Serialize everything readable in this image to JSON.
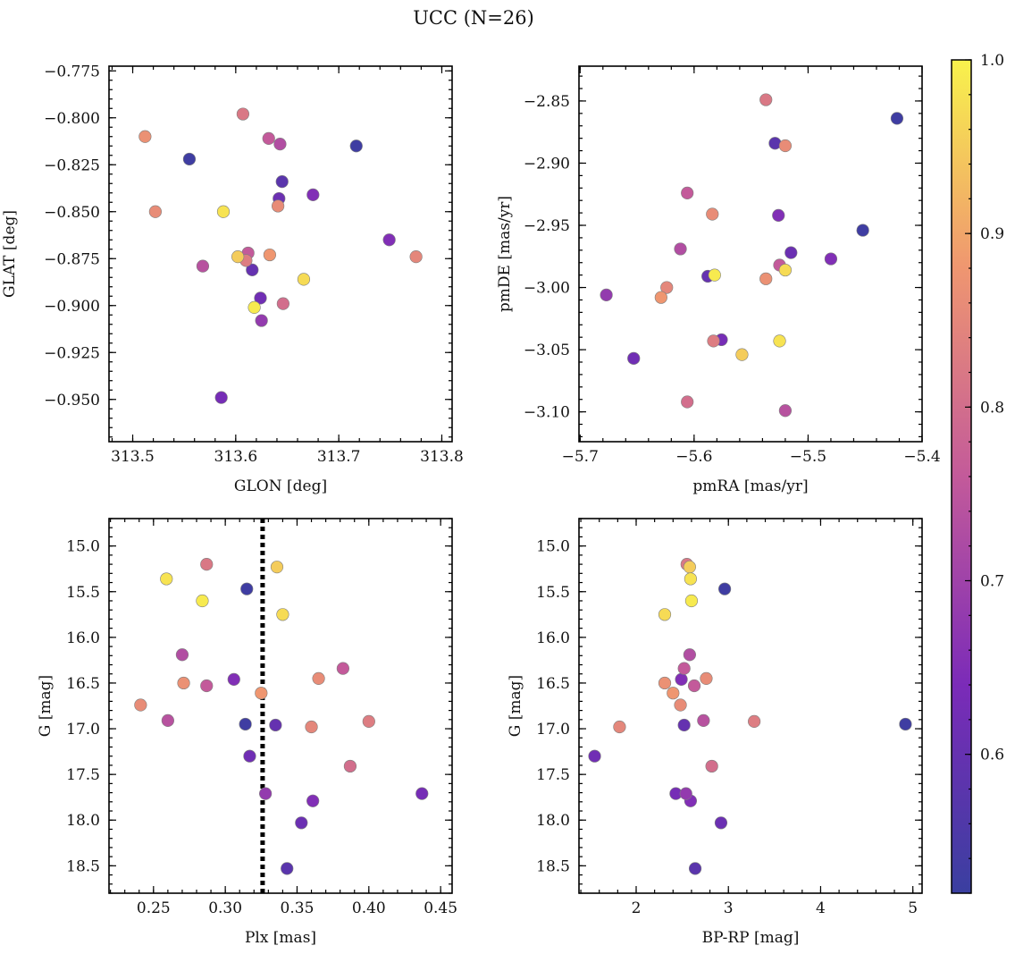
{
  "chart_data": {
    "title": "UCC (N=26)",
    "colormap": "plasma",
    "colorbar": {
      "range": [
        0.52,
        1.0
      ],
      "ticks": [
        0.6,
        0.7,
        0.8,
        0.9,
        1.0
      ],
      "tick_labels": [
        "0.6",
        "0.7",
        "0.8",
        "0.9",
        "1.0"
      ],
      "placement": "right"
    },
    "members": [
      {
        "glon": 313.555,
        "glat": -0.822,
        "pmra": -5.422,
        "pmde": -2.864,
        "plx": 0.315,
        "g": 15.47,
        "bprp": 2.96,
        "p": 0.53
      },
      {
        "glon": 313.717,
        "glat": -0.815,
        "pmra": -5.452,
        "pmde": -2.954,
        "plx": 0.314,
        "g": 16.95,
        "bprp": 4.92,
        "p": 0.53
      },
      {
        "glon": 313.607,
        "glat": -0.798,
        "pmra": -5.537,
        "pmde": -2.849,
        "plx": 0.287,
        "g": 15.2,
        "bprp": 2.55,
        "p": 0.82
      },
      {
        "glon": 313.632,
        "glat": -0.811,
        "pmra": -5.606,
        "pmde": -2.924,
        "plx": 0.382,
        "g": 16.34,
        "bprp": 2.52,
        "p": 0.76
      },
      {
        "glon": 313.643,
        "glat": -0.814,
        "pmra": -5.612,
        "pmde": -2.969,
        "plx": 0.27,
        "g": 16.19,
        "bprp": 2.58,
        "p": 0.73
      },
      {
        "glon": 313.645,
        "glat": -0.834,
        "pmra": -5.529,
        "pmde": -2.884,
        "plx": 0.343,
        "g": 18.53,
        "bprp": 2.64,
        "p": 0.58
      },
      {
        "glon": 313.642,
        "glat": -0.843,
        "pmra": -5.515,
        "pmde": -2.972,
        "plx": 0.353,
        "g": 18.03,
        "bprp": 2.92,
        "p": 0.61
      },
      {
        "glon": 313.675,
        "glat": -0.841,
        "pmra": -5.48,
        "pmde": -2.977,
        "plx": 0.361,
        "g": 17.79,
        "bprp": 2.59,
        "p": 0.65
      },
      {
        "glon": 313.641,
        "glat": -0.847,
        "pmra": -5.52,
        "pmde": -2.886,
        "plx": 0.241,
        "g": 16.74,
        "bprp": 2.48,
        "p": 0.86
      },
      {
        "glon": 313.512,
        "glat": -0.81,
        "pmra": -5.537,
        "pmde": -2.993,
        "plx": 0.271,
        "g": 16.5,
        "bprp": 2.31,
        "p": 0.87
      },
      {
        "glon": 313.522,
        "glat": -0.85,
        "pmra": -5.584,
        "pmde": -2.941,
        "plx": 0.365,
        "g": 16.45,
        "bprp": 2.76,
        "p": 0.86
      },
      {
        "glon": 313.588,
        "glat": -0.85,
        "pmra": -5.525,
        "pmde": -3.043,
        "plx": 0.259,
        "g": 15.36,
        "bprp": 2.59,
        "p": 0.98
      },
      {
        "glon": 313.749,
        "glat": -0.865,
        "pmra": -5.526,
        "pmde": -2.942,
        "plx": 0.306,
        "g": 16.46,
        "bprp": 2.49,
        "p": 0.65
      },
      {
        "glon": 313.775,
        "glat": -0.874,
        "pmra": -5.624,
        "pmde": -3.0,
        "plx": 0.36,
        "g": 16.98,
        "bprp": 1.82,
        "p": 0.85
      },
      {
        "glon": 313.612,
        "glat": -0.872,
        "pmra": -5.525,
        "pmde": -2.982,
        "plx": 0.287,
        "g": 16.53,
        "bprp": 2.63,
        "p": 0.76
      },
      {
        "glon": 313.633,
        "glat": -0.873,
        "pmra": -5.629,
        "pmde": -3.008,
        "plx": 0.325,
        "g": 16.61,
        "bprp": 2.4,
        "p": 0.88
      },
      {
        "glon": 313.602,
        "glat": -0.874,
        "pmra": -5.558,
        "pmde": -3.054,
        "plx": 0.336,
        "g": 15.23,
        "bprp": 2.58,
        "p": 0.95
      },
      {
        "glon": 313.61,
        "glat": -0.876,
        "pmra": -5.583,
        "pmde": -3.043,
        "plx": 0.4,
        "g": 16.92,
        "bprp": 3.28,
        "p": 0.83
      },
      {
        "glon": 313.568,
        "glat": -0.879,
        "pmra": -5.52,
        "pmde": -3.099,
        "plx": 0.26,
        "g": 16.91,
        "bprp": 2.73,
        "p": 0.74
      },
      {
        "glon": 313.616,
        "glat": -0.881,
        "pmra": -5.588,
        "pmde": -2.991,
        "plx": 0.335,
        "g": 16.96,
        "bprp": 2.52,
        "p": 0.6
      },
      {
        "glon": 313.666,
        "glat": -0.886,
        "pmra": -5.52,
        "pmde": -2.986,
        "plx": 0.34,
        "g": 15.75,
        "bprp": 2.31,
        "p": 0.97
      },
      {
        "glon": 313.624,
        "glat": -0.896,
        "pmra": -5.653,
        "pmde": -3.057,
        "plx": 0.317,
        "g": 17.3,
        "bprp": 1.55,
        "p": 0.62
      },
      {
        "glon": 313.646,
        "glat": -0.899,
        "pmra": -5.606,
        "pmde": -3.092,
        "plx": 0.387,
        "g": 17.41,
        "bprp": 2.82,
        "p": 0.8
      },
      {
        "glon": 313.618,
        "glat": -0.901,
        "pmra": -5.582,
        "pmde": -2.99,
        "plx": 0.284,
        "g": 15.6,
        "bprp": 2.6,
        "p": 0.99
      },
      {
        "glon": 313.625,
        "glat": -0.908,
        "pmra": -5.677,
        "pmde": -3.006,
        "plx": 0.328,
        "g": 17.71,
        "bprp": 2.54,
        "p": 0.68
      },
      {
        "glon": 313.586,
        "glat": -0.949,
        "pmra": -5.576,
        "pmde": -3.042,
        "plx": 0.437,
        "g": 17.71,
        "bprp": 2.43,
        "p": 0.63
      }
    ],
    "panels": [
      {
        "id": "glon-glat",
        "type": "scatter",
        "x_field": "glon",
        "y_field": "glat",
        "xlabel": "GLON [deg]",
        "ylabel": "GLAT [deg]",
        "xlim": [
          313.477,
          313.81
        ],
        "ylim": [
          -0.9725,
          -0.7725
        ],
        "xticks": [
          313.5,
          313.6,
          313.7,
          313.8
        ],
        "xtick_labels": [
          "313.5",
          "313.6",
          "313.7",
          "313.8"
        ],
        "yticks": [
          -0.775,
          -0.8,
          -0.825,
          -0.85,
          -0.875,
          -0.9,
          -0.925,
          -0.95
        ],
        "ytick_labels": [
          "−0.775",
          "−0.800",
          "−0.825",
          "−0.850",
          "−0.875",
          "−0.900",
          "−0.925",
          "−0.950"
        ],
        "y_inverted": false
      },
      {
        "id": "pm",
        "type": "scatter",
        "x_field": "pmra",
        "y_field": "pmde",
        "xlabel": "pmRA [mas/yr]",
        "ylabel": "pmDE [mas/yr]",
        "xlim": [
          -5.701,
          -5.4
        ],
        "ylim": [
          -3.124,
          -2.822
        ],
        "xticks": [
          -5.7,
          -5.6,
          -5.5,
          -5.4
        ],
        "xtick_labels": [
          "−5.7",
          "−5.6",
          "−5.5",
          "−5.4"
        ],
        "yticks": [
          -2.85,
          -2.9,
          -2.95,
          -3.0,
          -3.05,
          -3.1
        ],
        "ytick_labels": [
          "−2.85",
          "−2.90",
          "−2.95",
          "−3.00",
          "−3.05",
          "−3.10"
        ],
        "y_inverted": false
      },
      {
        "id": "plx-g",
        "type": "scatter",
        "x_field": "plx",
        "y_field": "g",
        "xlabel": "Plx [mas]",
        "ylabel": "G [mag]",
        "xlim": [
          0.219,
          0.458
        ],
        "ylim": [
          14.7,
          18.8
        ],
        "xticks": [
          0.25,
          0.3,
          0.35,
          0.4,
          0.45
        ],
        "xtick_labels": [
          "0.25",
          "0.30",
          "0.35",
          "0.40",
          "0.45"
        ],
        "yticks": [
          15.0,
          15.5,
          16.0,
          16.5,
          17.0,
          17.5,
          18.0,
          18.5
        ],
        "ytick_labels": [
          "15.0",
          "15.5",
          "16.0",
          "16.5",
          "17.0",
          "17.5",
          "18.0",
          "18.5"
        ],
        "y_inverted": true,
        "vline": 0.326
      },
      {
        "id": "cmd",
        "type": "scatter",
        "x_field": "bprp",
        "y_field": "g",
        "xlabel": "BP-RP [mag]",
        "ylabel": "G [mag]",
        "xlim": [
          1.38,
          5.1
        ],
        "ylim": [
          14.7,
          18.8
        ],
        "xticks": [
          2,
          3,
          4,
          5
        ],
        "xtick_labels": [
          "2",
          "3",
          "4",
          "5"
        ],
        "yticks": [
          15.0,
          15.5,
          16.0,
          16.5,
          17.0,
          17.5,
          18.0,
          18.5
        ],
        "ytick_labels": [
          "15.0",
          "15.5",
          "16.0",
          "16.5",
          "17.0",
          "17.5",
          "18.0",
          "18.5"
        ],
        "y_inverted": true
      }
    ]
  }
}
